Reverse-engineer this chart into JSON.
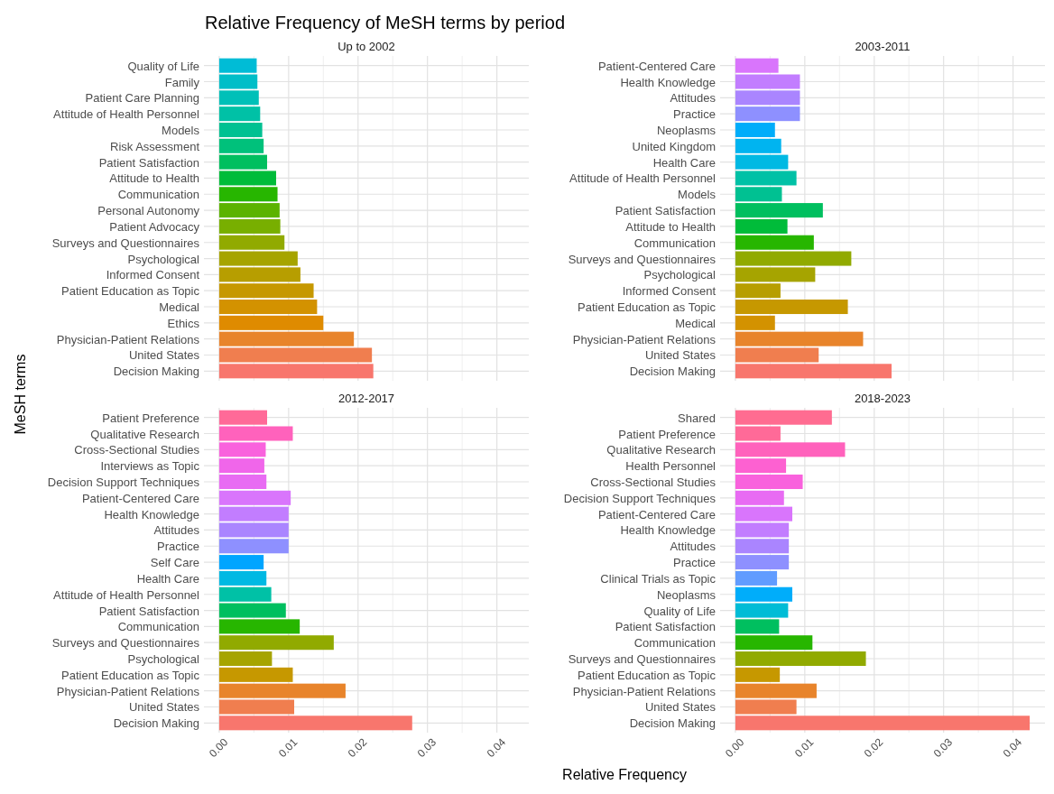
{
  "chart_data": [
    {
      "type": "bar",
      "orientation": "horizontal",
      "title": "Relative Frequency of MeSH terms by period",
      "subtitle": "Up to 2002",
      "ylabel": "MeSH terms",
      "categories": [
        "Quality of Life",
        "Family",
        "Patient Care Planning",
        "Attitude of Health Personnel",
        "Models",
        "Risk Assessment",
        "Patient Satisfaction",
        "Attitude to Health",
        "Communication",
        "Personal Autonomy",
        "Patient Advocacy",
        "Surveys and Questionnaires",
        "Psychological",
        "Informed Consent",
        "Patient Education as Topic",
        "Medical",
        "Ethics",
        "Physician-Patient Relations",
        "United States",
        "Decision Making"
      ],
      "values": [
        0.0054,
        0.0055,
        0.0057,
        0.0059,
        0.0062,
        0.0064,
        0.0069,
        0.0082,
        0.0084,
        0.0087,
        0.0088,
        0.0094,
        0.0113,
        0.0117,
        0.0136,
        0.0141,
        0.015,
        0.0194,
        0.022,
        0.0222
      ],
      "colors": [
        "#00bcd6",
        "#00bec8",
        "#00c0b8",
        "#00c1a6",
        "#00c192",
        "#00c17b",
        "#00bf5f",
        "#00bc3a",
        "#27b600",
        "#5bb300",
        "#78af00",
        "#91aa00",
        "#a6a400",
        "#b79e00",
        "#c69800",
        "#d39200",
        "#df8b00",
        "#e8842b",
        "#f07e4f",
        "#f8766d"
      ],
      "xlim": [
        -0.0022,
        0.0446
      ],
      "xticks": [
        0,
        {
          "value": 0.005,
          "label": null
        },
        0.01,
        {
          "value": 0.015,
          "label": null
        },
        0.02,
        {
          "value": 0.025,
          "label": null
        },
        0.03,
        {
          "value": 0.035,
          "label": null
        },
        0.04
      ],
      "grid": true,
      "tick_labels": "y"
    },
    {
      "type": "bar",
      "orientation": "horizontal",
      "subtitle": "2003-2011",
      "categories": [
        "Patient-Centered Care",
        "Health Knowledge",
        "Attitudes",
        "Practice",
        "Neoplasms",
        "United Kingdom",
        "Health Care",
        "Attitude of Health Personnel",
        "Models",
        "Patient Satisfaction",
        "Attitude to Health",
        "Communication",
        "Surveys and Questionnaires",
        "Psychological",
        "Informed Consent",
        "Patient Education as Topic",
        "Medical",
        "Physician-Patient Relations",
        "United States",
        "Decision Making"
      ],
      "values": [
        0.0062,
        0.0093,
        0.0093,
        0.0093,
        0.0057,
        0.0066,
        0.0076,
        0.0088,
        0.0067,
        0.0126,
        0.0075,
        0.0113,
        0.0167,
        0.0115,
        0.0065,
        0.0162,
        0.0057,
        0.0184,
        0.012,
        0.0225
      ],
      "colors": [
        "#d975fc",
        "#c27dff",
        "#aa85ff",
        "#8e90ff",
        "#00adfa",
        "#00b4f0",
        "#00b9e3",
        "#00c1a6",
        "#00c192",
        "#00bf5f",
        "#00bc3a",
        "#27b600",
        "#91aa00",
        "#a6a400",
        "#b79e00",
        "#c69800",
        "#d39200",
        "#e8842b",
        "#f07e4f",
        "#f8766d"
      ],
      "xlim": [
        -0.0022,
        0.0446
      ],
      "xticks": [
        0,
        {
          "value": 0.005,
          "label": null
        },
        0.01,
        {
          "value": 0.015,
          "label": null
        },
        0.02,
        {
          "value": 0.025,
          "label": null
        },
        0.03,
        {
          "value": 0.035,
          "label": null
        },
        0.04
      ],
      "grid": true,
      "tick_labels": "y"
    },
    {
      "type": "bar",
      "orientation": "horizontal",
      "subtitle": "2012-2017",
      "xlabel": "Relative Frequency",
      "categories": [
        "Patient Preference",
        "Qualitative Research",
        "Cross-Sectional Studies",
        "Interviews as Topic",
        "Decision Support Techniques",
        "Patient-Centered Care",
        "Health Knowledge",
        "Attitudes",
        "Practice",
        "Self Care",
        "Health Care",
        "Attitude of Health Personnel",
        "Patient Satisfaction",
        "Communication",
        "Surveys and Questionnaires",
        "Psychological",
        "Patient Education as Topic",
        "Physician-Patient Relations",
        "United States",
        "Decision Making"
      ],
      "values": [
        0.0069,
        0.0106,
        0.0067,
        0.0065,
        0.0068,
        0.0103,
        0.01,
        0.01,
        0.01,
        0.0064,
        0.0068,
        0.0075,
        0.0096,
        0.0116,
        0.0165,
        0.0076,
        0.0106,
        0.0182,
        0.0108,
        0.0278
      ],
      "colors": [
        "#ff6a98",
        "#ff62bc",
        "#f962dd",
        "#f066ea",
        "#e86bf3",
        "#d975fc",
        "#c27dff",
        "#aa85ff",
        "#8e90ff",
        "#00a5ff",
        "#00b9e3",
        "#00c1a6",
        "#00bf5f",
        "#27b600",
        "#91aa00",
        "#a6a400",
        "#c69800",
        "#e8842b",
        "#f07e4f",
        "#f8766d"
      ],
      "xlim": [
        -0.0022,
        0.0446
      ],
      "xticks": [
        {
          "value": 0,
          "label": "0.00"
        },
        {
          "value": 0.005,
          "label": null
        },
        0.01,
        {
          "value": 0.015,
          "label": null
        },
        0.02,
        {
          "value": 0.025,
          "label": null
        },
        0.03,
        {
          "value": 0.035,
          "label": null
        },
        0.04
      ],
      "grid": true
    },
    {
      "type": "bar",
      "orientation": "horizontal",
      "subtitle": "2018-2023",
      "categories": [
        "Shared",
        "Patient Preference",
        "Qualitative Research",
        "Health Personnel",
        "Cross-Sectional Studies",
        "Decision Support Techniques",
        "Patient-Centered Care",
        "Health Knowledge",
        "Attitudes",
        "Practice",
        "Clinical Trials as Topic",
        "Neoplasms",
        "Quality of Life",
        "Patient Satisfaction",
        "Communication",
        "Surveys and Questionnaires",
        "Patient Education as Topic",
        "Physician-Patient Relations",
        "United States",
        "Decision Making"
      ],
      "values": [
        0.0139,
        0.0065,
        0.0158,
        0.0073,
        0.0097,
        0.007,
        0.0082,
        0.0077,
        0.0077,
        0.0077,
        0.006,
        0.0082,
        0.0076,
        0.0063,
        0.0111,
        0.0188,
        0.0064,
        0.0117,
        0.0088,
        0.0424
      ],
      "colors": [
        "#ff6c91",
        "#ff6a98",
        "#ff62bc",
        "#fd61d1",
        "#f962dd",
        "#e86bf3",
        "#d975fc",
        "#c27dff",
        "#aa85ff",
        "#8e90ff",
        "#619cff",
        "#00adfa",
        "#00bcd6",
        "#00bf5f",
        "#27b600",
        "#91aa00",
        "#c69800",
        "#e8842b",
        "#f07e4f",
        "#f8766d"
      ],
      "xlim": [
        -0.0022,
        0.0446
      ],
      "xticks": [
        {
          "value": 0,
          "label": "0.00"
        },
        {
          "value": 0.005,
          "label": null
        },
        0.01,
        {
          "value": 0.015,
          "label": null
        },
        0.02,
        {
          "value": 0.025,
          "label": null
        },
        0.03,
        {
          "value": 0.035,
          "label": null
        },
        0.04
      ],
      "grid": true
    }
  ]
}
